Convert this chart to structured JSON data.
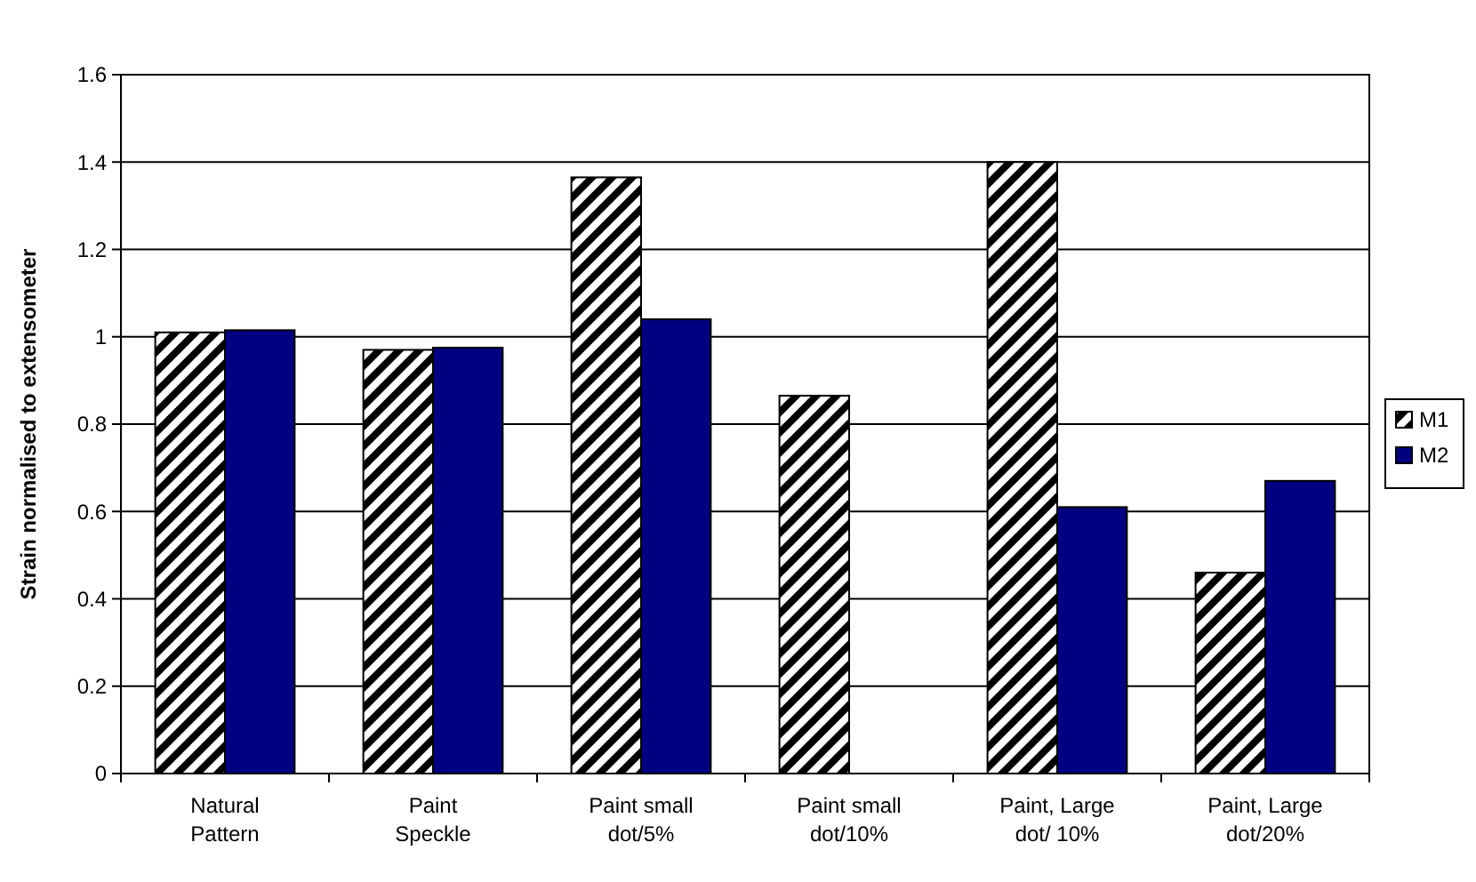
{
  "chart_data": {
    "type": "bar",
    "ylabel": "Strain normalised to extensometer",
    "categories": [
      "Natural Pattern",
      "Paint Speckle",
      "Paint small dot/5%",
      "Paint small dot/10%",
      "Paint, Large dot/ 10%",
      "Paint, Large dot/20%"
    ],
    "series": [
      {
        "name": "M1",
        "color": "#000000",
        "values": [
          1.01,
          0.97,
          1.365,
          0.865,
          1.4,
          0.46
        ]
      },
      {
        "name": "M2",
        "color": "#000080",
        "values": [
          1.015,
          0.975,
          1.04,
          null,
          0.61,
          0.67
        ]
      }
    ],
    "ylim": [
      0,
      1.6
    ],
    "yticks": [
      0,
      0.2,
      0.4,
      0.6,
      0.8,
      1,
      1.2,
      1.4,
      1.6
    ],
    "grid": "y",
    "legend": "right"
  }
}
